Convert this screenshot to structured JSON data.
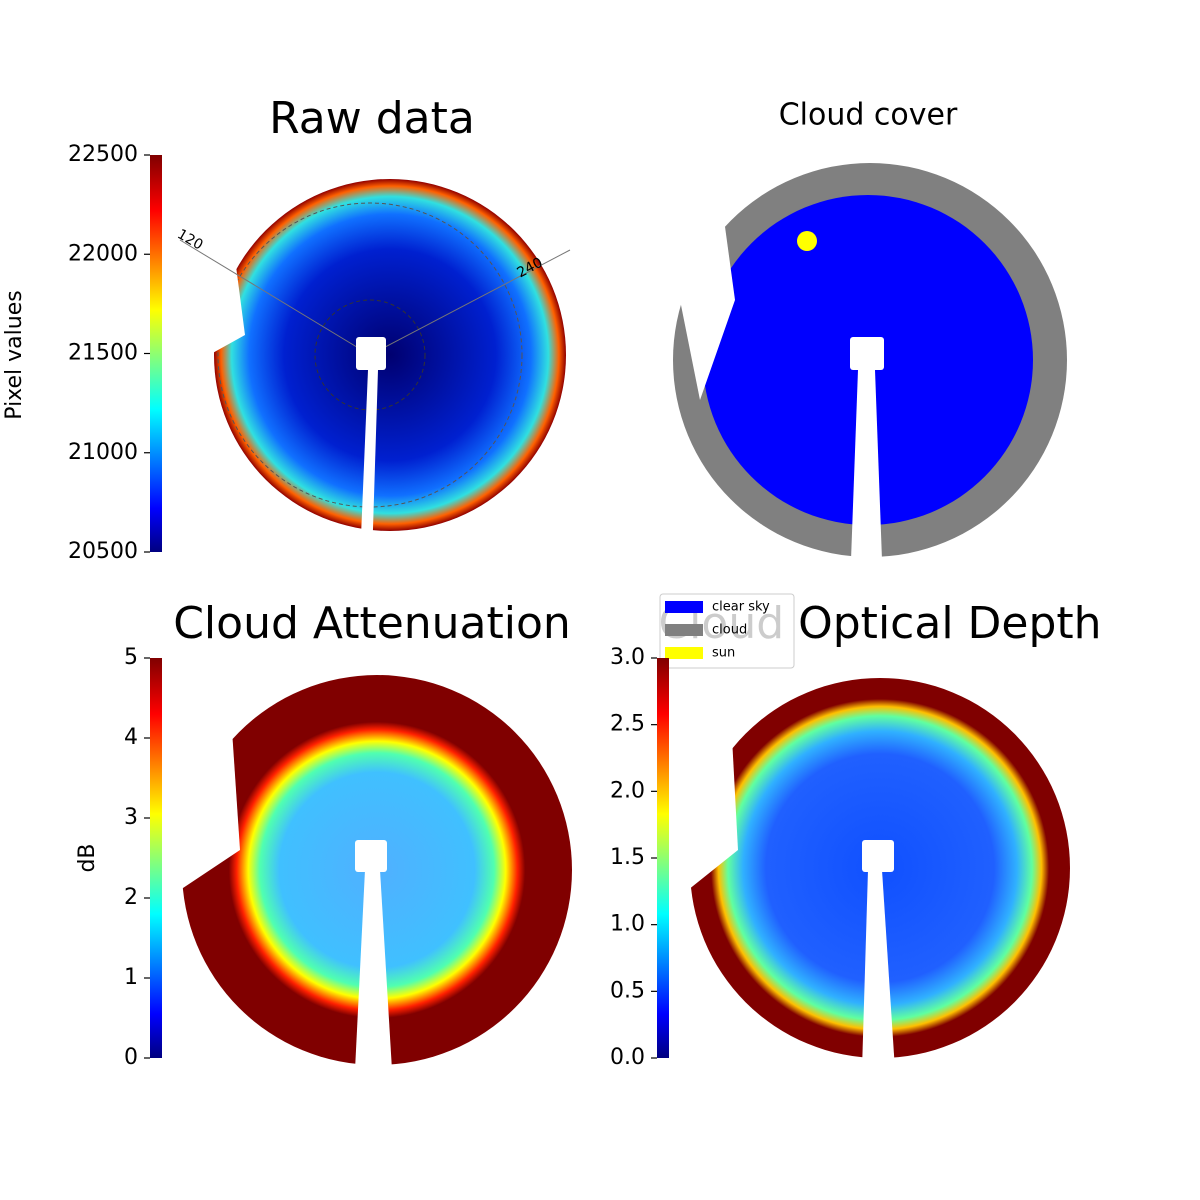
{
  "chart_data": [
    {
      "type": "image",
      "title": "Raw data",
      "ylabel": "Pixel values",
      "colormap": "jet",
      "ylim": [
        20500,
        22500
      ],
      "yticks": [
        20500,
        21000,
        21500,
        22000,
        22500
      ],
      "annotations": [
        "120",
        "240"
      ]
    },
    {
      "type": "image",
      "title": "Cloud cover",
      "series": [
        {
          "name": "clear sky",
          "color": "#0000ff"
        },
        {
          "name": "cloud",
          "color": "#808080"
        },
        {
          "name": "sun",
          "color": "#ffff00"
        }
      ]
    },
    {
      "type": "image",
      "title": "Cloud Attenuation",
      "ylabel": "dB",
      "colormap": "jet",
      "ylim": [
        0,
        5
      ],
      "yticks": [
        0,
        1,
        2,
        3,
        4,
        5
      ]
    },
    {
      "type": "image",
      "title": "Cloud Optical Depth",
      "colormap": "jet",
      "ylim": [
        0,
        3
      ],
      "yticks": [
        {
          "value": 0,
          "label": "0.0"
        },
        {
          "value": 0.5,
          "label": "0.5"
        },
        {
          "value": 1,
          "label": "1.0"
        },
        {
          "value": 1.5,
          "label": "1.5"
        },
        {
          "value": 2,
          "label": "2.0"
        },
        {
          "value": 2.5,
          "label": "2.5"
        },
        {
          "value": 3,
          "label": "3.0"
        }
      ]
    }
  ]
}
